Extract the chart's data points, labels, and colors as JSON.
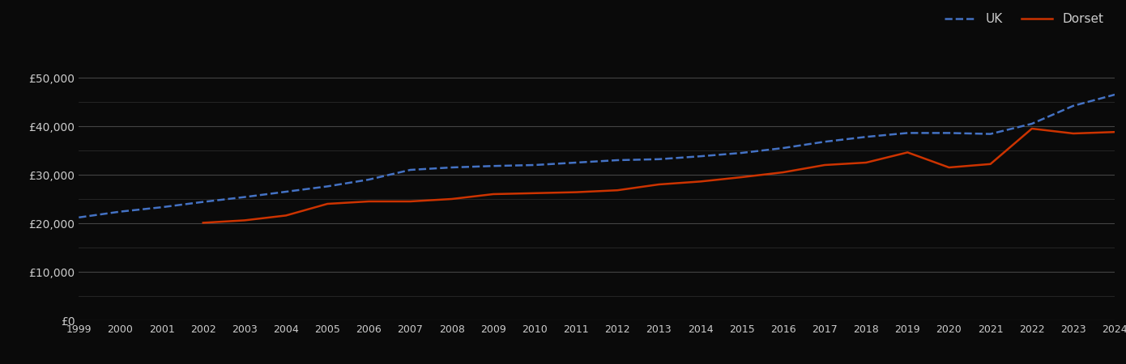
{
  "years": [
    1999,
    2000,
    2001,
    2002,
    2003,
    2004,
    2005,
    2006,
    2007,
    2008,
    2009,
    2010,
    2011,
    2012,
    2013,
    2014,
    2015,
    2016,
    2017,
    2018,
    2019,
    2020,
    2021,
    2022,
    2023,
    2024
  ],
  "uk": [
    21200,
    22400,
    23300,
    24400,
    25400,
    26500,
    27600,
    29000,
    31000,
    31500,
    31800,
    32000,
    32500,
    33000,
    33200,
    33800,
    34500,
    35500,
    36800,
    37800,
    38600,
    38600,
    38400,
    40500,
    44200,
    46500
  ],
  "dorset": [
    null,
    null,
    null,
    20100,
    20600,
    21600,
    24000,
    24500,
    24500,
    25000,
    26000,
    26200,
    26400,
    26800,
    28000,
    28600,
    29500,
    30500,
    32000,
    32500,
    34600,
    31500,
    32200,
    39500,
    38500,
    38800
  ],
  "uk_color": "#4472C4",
  "dorset_color": "#CC3300",
  "background_color": "#0a0a0a",
  "text_color": "#cccccc",
  "major_grid_color": "#444444",
  "minor_grid_color": "#2a2a2a",
  "ylim": [
    0,
    57000
  ],
  "major_yticks": [
    0,
    10000,
    20000,
    30000,
    40000,
    50000
  ],
  "minor_yticks": [
    5000,
    15000,
    25000,
    35000,
    45000
  ],
  "ytick_labels": [
    "£0",
    "£10,000",
    "£20,000",
    "£30,000",
    "£40,000",
    "£50,000"
  ],
  "legend_labels": [
    "UK",
    "Dorset"
  ],
  "linewidth": 1.8
}
